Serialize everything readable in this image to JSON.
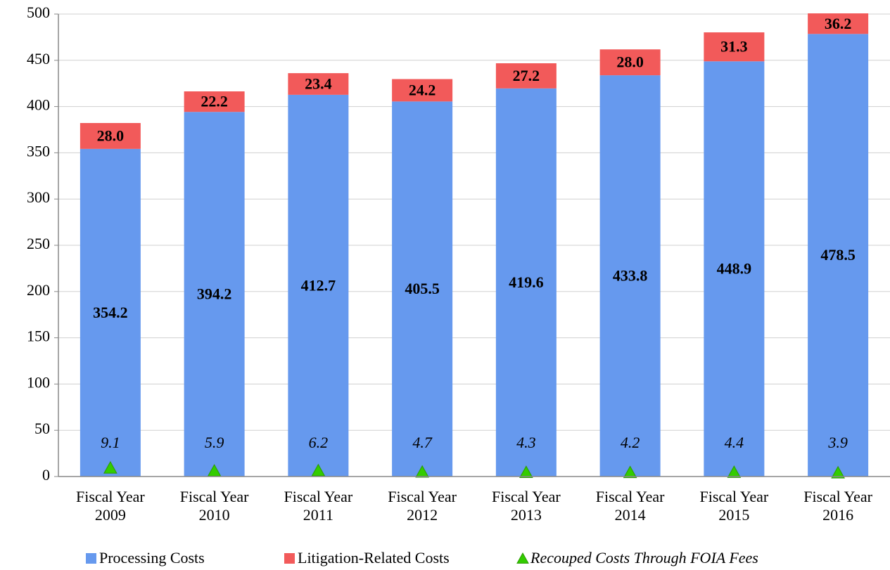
{
  "chart_data": {
    "type": "bar",
    "stacked": true,
    "categories": [
      "Fiscal Year 2009",
      "Fiscal Year 2010",
      "Fiscal Year 2011",
      "Fiscal Year 2012",
      "Fiscal Year 2013",
      "Fiscal Year 2014",
      "Fiscal Year 2015",
      "Fiscal Year 2016"
    ],
    "series": [
      {
        "name": "Processing Costs",
        "color": "#6699ee",
        "values": [
          354.2,
          394.2,
          412.7,
          405.5,
          419.6,
          433.8,
          448.9,
          478.5
        ],
        "value_labels": [
          "354.2",
          "394.2",
          "412.7",
          "405.5",
          "419.6",
          "433.8",
          "448.9",
          "478.5"
        ]
      },
      {
        "name": "Litigation-Related Costs",
        "color": "#f25a5a",
        "values": [
          28,
          22.2,
          23.4,
          24.2,
          27.2,
          28,
          31.3,
          36.2
        ],
        "value_labels": [
          "28.0",
          "22.2",
          "23.4",
          "24.2",
          "27.2",
          "28.0",
          "31.3",
          "36.2"
        ]
      },
      {
        "name": "Recouped Costs Through FOIA Fees",
        "color": "#33cc00",
        "marker": "triangle",
        "values": [
          9.1,
          5.9,
          6.2,
          4.7,
          4.3,
          4.2,
          4.4,
          3.9
        ],
        "value_labels": [
          "9.1",
          "5.9",
          "6.2",
          "4.7",
          "4.3",
          "4.2",
          "4.4",
          "3.9"
        ]
      }
    ],
    "ylim": [
      0,
      500
    ],
    "yticks": [
      0,
      50,
      100,
      150,
      200,
      250,
      300,
      350,
      400,
      450,
      500
    ],
    "grid": true,
    "legend": "bottom"
  }
}
